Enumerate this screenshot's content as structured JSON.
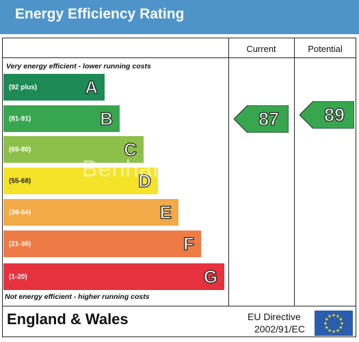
{
  "title": "Energy Efficiency Rating",
  "columns": {
    "current": "Current",
    "potential": "Potential"
  },
  "top_caption": "Very energy efficient - lower running costs",
  "bottom_caption": "Not energy efficient - higher running costs",
  "bands": [
    {
      "range": "(92 plus)",
      "letter": "A",
      "color": "#1e8a55"
    },
    {
      "range": "(81-91)",
      "letter": "B",
      "color": "#38a64f"
    },
    {
      "range": "(69-80)",
      "letter": "C",
      "color": "#8dc04b"
    },
    {
      "range": "(55-68)",
      "letter": "D",
      "color": "#f5e32a"
    },
    {
      "range": "(39-54)",
      "letter": "E",
      "color": "#f2a947"
    },
    {
      "range": "(21-38)",
      "letter": "F",
      "color": "#ee7a45"
    },
    {
      "range": "(1-20)",
      "letter": "G",
      "color": "#e5323e"
    }
  ],
  "current_rating": {
    "value": "87",
    "band": "B",
    "color": "#38a64f"
  },
  "potential_rating": {
    "value": "89",
    "band": "B",
    "color": "#38a64f"
  },
  "watermark": "Benham",
  "footer": {
    "region": "England & Wales",
    "directive_line1": "EU Directive",
    "directive_line2": "2002/91/EC"
  },
  "colors": {
    "header": "#4f94c9",
    "eu_flag": "#2a5db0",
    "eu_stars": "#f5d800"
  }
}
